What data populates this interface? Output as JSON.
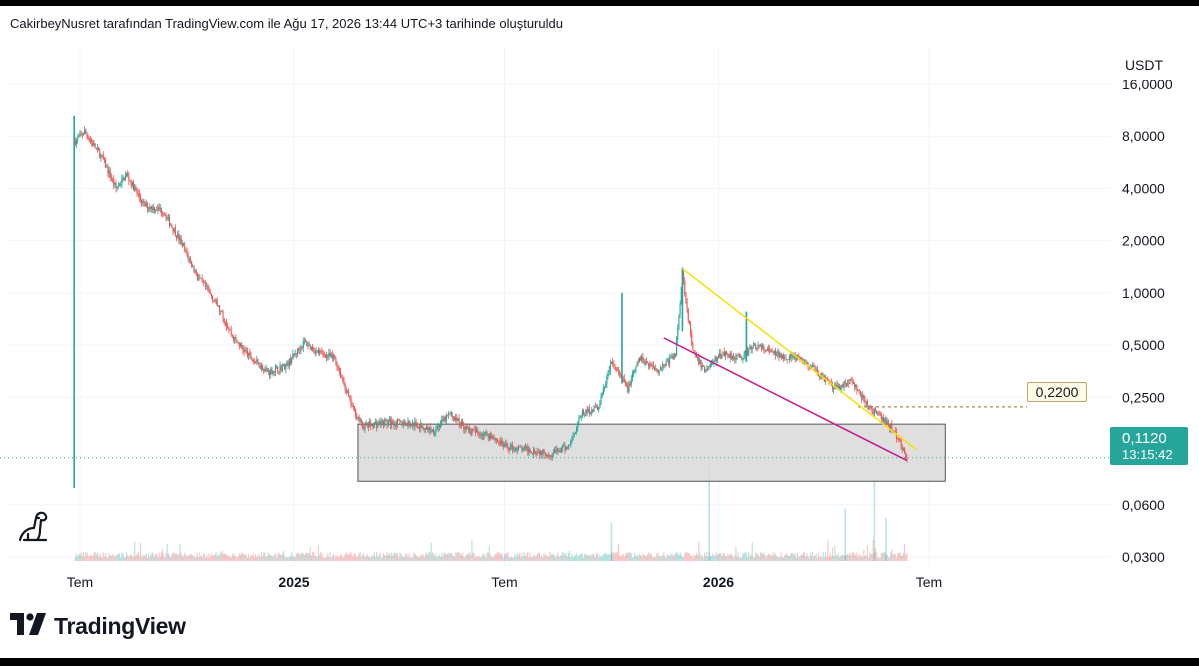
{
  "header": {
    "attribution": "CakirbeyNusret tarafından TradingView.com ile Ağu 17, 2026 13:44 UTC+3 tarihinde oluşturuldu"
  },
  "price_scale": {
    "currency": "USDT"
  },
  "last_price": {
    "value": "0,1120",
    "countdown": "13:15:42",
    "color": "#26a69a"
  },
  "level_label": {
    "value": "0,2200"
  },
  "branding": {
    "name": "TradingView"
  },
  "icons": {
    "logo": "tradingview-logo-icon",
    "helper": "dinosaur-icon"
  },
  "colors": {
    "up": "#26a69a",
    "down": "#ef5350",
    "resistance_line": "#f5e000",
    "support_line": "#c2188c",
    "box_fill": "#d9d9d9"
  },
  "chart_data": {
    "type": "candlestick",
    "scale": "log",
    "ylim": [
      0.03,
      18
    ],
    "y_ticks": [
      {
        "value": 16,
        "label": "16,0000"
      },
      {
        "value": 8,
        "label": "8,0000"
      },
      {
        "value": 4,
        "label": "4,0000"
      },
      {
        "value": 2,
        "label": "2,0000"
      },
      {
        "value": 1,
        "label": "1,0000"
      },
      {
        "value": 0.5,
        "label": "0,5000"
      },
      {
        "value": 0.25,
        "label": "0,2500"
      },
      {
        "value": 0.06,
        "label": "0,0600"
      },
      {
        "value": 0.03,
        "label": "0,0300"
      }
    ],
    "x_range": [
      "2024-06-20",
      "2026-09-15"
    ],
    "x_ticks": [
      {
        "date": "2024-07-01",
        "label": "Tem",
        "bold": false
      },
      {
        "date": "2025-01-01",
        "label": "2025",
        "bold": true
      },
      {
        "date": "2025-07-01",
        "label": "Tem",
        "bold": false
      },
      {
        "date": "2026-01-01",
        "label": "2026",
        "bold": true
      },
      {
        "date": "2026-07-01",
        "label": "Tem",
        "bold": false
      }
    ],
    "price_path": [
      [
        "2024-06-27",
        7.5
      ],
      [
        "2024-07-05",
        8.5
      ],
      [
        "2024-07-20",
        6.0
      ],
      [
        "2024-08-01",
        4.0
      ],
      [
        "2024-08-10",
        4.8
      ],
      [
        "2024-08-25",
        3.2
      ],
      [
        "2024-09-10",
        3.0
      ],
      [
        "2024-09-25",
        2.0
      ],
      [
        "2024-10-10",
        1.25
      ],
      [
        "2024-10-25",
        0.9
      ],
      [
        "2024-11-10",
        0.55
      ],
      [
        "2024-11-25",
        0.42
      ],
      [
        "2024-12-10",
        0.35
      ],
      [
        "2024-12-25",
        0.38
      ],
      [
        "2025-01-10",
        0.52
      ],
      [
        "2025-01-20",
        0.46
      ],
      [
        "2025-02-05",
        0.42
      ],
      [
        "2025-02-20",
        0.22
      ],
      [
        "2025-03-01",
        0.17
      ],
      [
        "2025-03-20",
        0.18
      ],
      [
        "2025-04-15",
        0.175
      ],
      [
        "2025-05-01",
        0.16
      ],
      [
        "2025-05-15",
        0.2
      ],
      [
        "2025-06-01",
        0.16
      ],
      [
        "2025-06-20",
        0.15
      ],
      [
        "2025-07-01",
        0.13
      ],
      [
        "2025-07-20",
        0.125
      ],
      [
        "2025-08-10",
        0.118
      ],
      [
        "2025-08-25",
        0.13
      ],
      [
        "2025-09-05",
        0.2
      ],
      [
        "2025-09-20",
        0.22
      ],
      [
        "2025-10-01",
        0.4
      ],
      [
        "2025-10-15",
        0.28
      ],
      [
        "2025-10-25",
        0.42
      ],
      [
        "2025-11-10",
        0.36
      ],
      [
        "2025-11-25",
        0.44
      ],
      [
        "2025-12-01",
        1.3
      ],
      [
        "2025-12-10",
        0.45
      ],
      [
        "2025-12-20",
        0.36
      ],
      [
        "2026-01-05",
        0.45
      ],
      [
        "2026-01-20",
        0.42
      ],
      [
        "2026-02-01",
        0.5
      ],
      [
        "2026-02-20",
        0.44
      ],
      [
        "2026-03-10",
        0.42
      ],
      [
        "2026-03-25",
        0.36
      ],
      [
        "2026-04-10",
        0.28
      ],
      [
        "2026-04-25",
        0.31
      ],
      [
        "2026-05-10",
        0.22
      ],
      [
        "2026-05-25",
        0.18
      ],
      [
        "2026-06-01",
        0.16
      ],
      [
        "2026-06-10",
        0.12
      ],
      [
        "2026-06-12",
        0.112
      ]
    ],
    "spikes": [
      {
        "date": "2024-06-26",
        "high": 10.5,
        "low": 0.075
      },
      {
        "date": "2025-12-01",
        "high": 1.4,
        "low": 0.6
      },
      {
        "date": "2025-10-10",
        "high": 1.0,
        "low": 0.3
      },
      {
        "date": "2026-01-25",
        "high": 0.78,
        "low": 0.4
      }
    ],
    "volume_spikes": [
      {
        "date": "2025-12-24",
        "relative": 1.0
      },
      {
        "date": "2026-04-20",
        "relative": 0.55
      },
      {
        "date": "2026-05-15",
        "relative": 0.85
      },
      {
        "date": "2025-10-01",
        "relative": 0.4
      },
      {
        "date": "2026-05-25",
        "relative": 0.45
      }
    ],
    "annotations": {
      "resistance_line": {
        "from": [
          "2025-12-01",
          1.38
        ],
        "to": [
          "2026-06-20",
          0.125
        ]
      },
      "support_line": {
        "from": [
          "2025-11-15",
          0.55
        ],
        "to": [
          "2026-06-12",
          0.108
        ]
      },
      "range_box": {
        "from_date": "2025-02-25",
        "to_date": "2026-07-15",
        "top": 0.175,
        "bottom": 0.082
      },
      "level_line": {
        "value": 0.22,
        "from_date": "2026-05-01"
      },
      "last_price_line": {
        "value": 0.112
      }
    }
  }
}
